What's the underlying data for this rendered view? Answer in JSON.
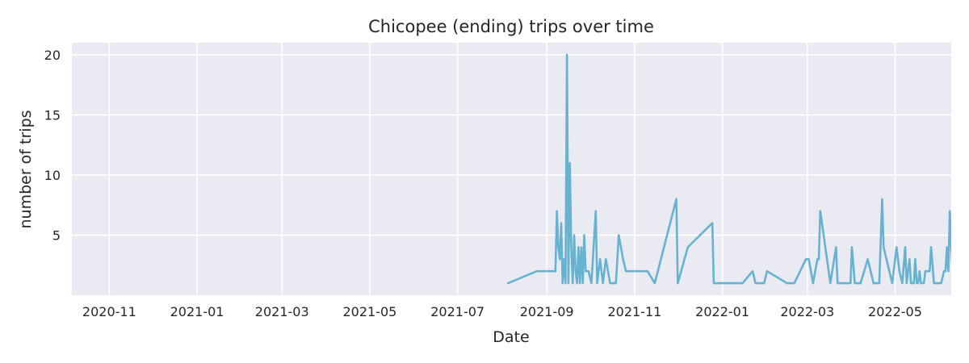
{
  "chart_data": {
    "type": "line",
    "title": "Chicopee (ending) trips over time",
    "xlabel": "Date",
    "ylabel": "number of trips",
    "x_ticks": [
      "2020-11",
      "2021-01",
      "2021-03",
      "2021-05",
      "2021-07",
      "2021-09",
      "2021-11",
      "2022-01",
      "2022-03",
      "2022-05"
    ],
    "y_ticks": [
      5,
      10,
      15,
      20
    ],
    "xlim": [
      "2020-10-06",
      "2022-06-09"
    ],
    "ylim": [
      0,
      21
    ],
    "grid": true,
    "series": [
      {
        "color": "#67b3cf",
        "points": [
          [
            "2021-08-05",
            1
          ],
          [
            "2021-08-25",
            2
          ],
          [
            "2021-09-01",
            2
          ],
          [
            "2021-09-07",
            2
          ],
          [
            "2021-09-08",
            7
          ],
          [
            "2021-09-09",
            4
          ],
          [
            "2021-09-10",
            3
          ],
          [
            "2021-09-11",
            6
          ],
          [
            "2021-09-12",
            1
          ],
          [
            "2021-09-13",
            3
          ],
          [
            "2021-09-14",
            1
          ],
          [
            "2021-09-15",
            20
          ],
          [
            "2021-09-16",
            1
          ],
          [
            "2021-09-17",
            11
          ],
          [
            "2021-09-18",
            4
          ],
          [
            "2021-09-19",
            1
          ],
          [
            "2021-09-20",
            5
          ],
          [
            "2021-09-21",
            2
          ],
          [
            "2021-09-22",
            1
          ],
          [
            "2021-09-23",
            4
          ],
          [
            "2021-09-24",
            1
          ],
          [
            "2021-09-25",
            4
          ],
          [
            "2021-09-26",
            1
          ],
          [
            "2021-09-27",
            5
          ],
          [
            "2021-09-28",
            2
          ],
          [
            "2021-09-30",
            2
          ],
          [
            "2021-10-02",
            1
          ],
          [
            "2021-10-05",
            7
          ],
          [
            "2021-10-06",
            1
          ],
          [
            "2021-10-08",
            3
          ],
          [
            "2021-10-10",
            1
          ],
          [
            "2021-10-12",
            3
          ],
          [
            "2021-10-15",
            1
          ],
          [
            "2021-10-19",
            1
          ],
          [
            "2021-10-21",
            5
          ],
          [
            "2021-10-24",
            3
          ],
          [
            "2021-10-26",
            2
          ],
          [
            "2021-11-10",
            2
          ],
          [
            "2021-11-15",
            1
          ],
          [
            "2021-11-30",
            8
          ],
          [
            "2021-12-01",
            1
          ],
          [
            "2021-12-08",
            4
          ],
          [
            "2021-12-25",
            6
          ],
          [
            "2021-12-26",
            1
          ],
          [
            "2022-01-05",
            1
          ],
          [
            "2022-01-15",
            1
          ],
          [
            "2022-01-22",
            2
          ],
          [
            "2022-01-24",
            1
          ],
          [
            "2022-01-30",
            1
          ],
          [
            "2022-02-01",
            2
          ],
          [
            "2022-02-15",
            1
          ],
          [
            "2022-02-20",
            1
          ],
          [
            "2022-02-24",
            2
          ],
          [
            "2022-02-28",
            3
          ],
          [
            "2022-03-02",
            3
          ],
          [
            "2022-03-05",
            1
          ],
          [
            "2022-03-08",
            3
          ],
          [
            "2022-03-09",
            3
          ],
          [
            "2022-03-10",
            7
          ],
          [
            "2022-03-17",
            1
          ],
          [
            "2022-03-21",
            4
          ],
          [
            "2022-03-22",
            1
          ],
          [
            "2022-03-31",
            1
          ],
          [
            "2022-04-01",
            4
          ],
          [
            "2022-04-03",
            1
          ],
          [
            "2022-04-07",
            1
          ],
          [
            "2022-04-12",
            3
          ],
          [
            "2022-04-16",
            1
          ],
          [
            "2022-04-20",
            1
          ],
          [
            "2022-04-22",
            8
          ],
          [
            "2022-04-23",
            4
          ],
          [
            "2022-04-27",
            2
          ],
          [
            "2022-04-29",
            1
          ],
          [
            "2022-05-02",
            4
          ],
          [
            "2022-05-04",
            2
          ],
          [
            "2022-05-06",
            1
          ],
          [
            "2022-05-08",
            4
          ],
          [
            "2022-05-09",
            1
          ],
          [
            "2022-05-11",
            3
          ],
          [
            "2022-05-12",
            1
          ],
          [
            "2022-05-14",
            1
          ],
          [
            "2022-05-15",
            3
          ],
          [
            "2022-05-16",
            1
          ],
          [
            "2022-05-17",
            1
          ],
          [
            "2022-05-18",
            2
          ],
          [
            "2022-05-19",
            1
          ],
          [
            "2022-05-21",
            1
          ],
          [
            "2022-05-22",
            2
          ],
          [
            "2022-05-25",
            2
          ],
          [
            "2022-05-26",
            4
          ],
          [
            "2022-05-28",
            1
          ],
          [
            "2022-05-29",
            1
          ],
          [
            "2022-06-01",
            1
          ],
          [
            "2022-06-02",
            1
          ],
          [
            "2022-06-04",
            2
          ],
          [
            "2022-06-05",
            2
          ],
          [
            "2022-06-06",
            4
          ],
          [
            "2022-06-07",
            2
          ],
          [
            "2022-06-08",
            7
          ],
          [
            "2022-06-09",
            4
          ],
          [
            "2022-06-10",
            2
          ]
        ]
      }
    ]
  }
}
